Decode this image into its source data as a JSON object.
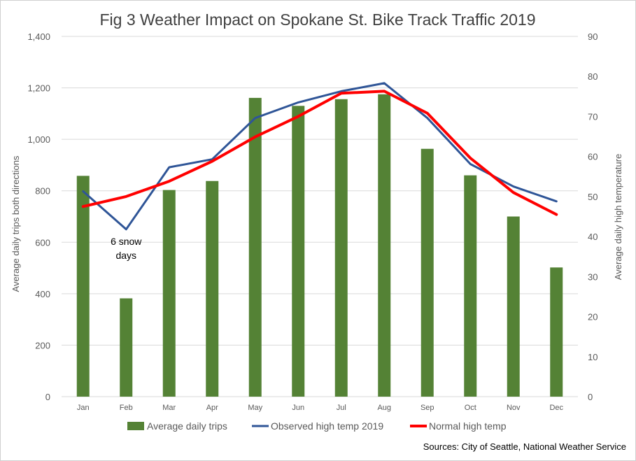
{
  "chart_data": {
    "type": "bar",
    "title": "Fig 3 Weather Impact on Spokane St. Bike Track Traffic 2019",
    "ylabel_left": "Average daily trips both directions",
    "ylabel_right": "Average daily high temperature",
    "ylim_left": [
      0,
      1400
    ],
    "ylim_right": [
      0,
      90
    ],
    "yticks_left": [
      "0",
      "200",
      "400",
      "600",
      "800",
      "1,000",
      "1,200",
      "1,400"
    ],
    "yticks_right": [
      "0",
      "10",
      "20",
      "30",
      "40",
      "50",
      "60",
      "70",
      "80",
      "90"
    ],
    "yticks_left_values": [
      0,
      200,
      400,
      600,
      800,
      1000,
      1200,
      1400
    ],
    "yticks_right_values": [
      0,
      10,
      20,
      30,
      40,
      50,
      60,
      70,
      80,
      90
    ],
    "categories": [
      "Jan",
      "Feb",
      "Mar",
      "Apr",
      "May",
      "Jun",
      "Jul",
      "Aug",
      "Sep",
      "Oct",
      "Nov",
      "Dec"
    ],
    "grid": true,
    "legend_position": "bottom",
    "series": [
      {
        "name": "Average daily trips",
        "kind": "bar",
        "axis": "left",
        "color": "#548235",
        "values": [
          858,
          382,
          803,
          838,
          1161,
          1130,
          1156,
          1175,
          963,
          860,
          700,
          502
        ]
      },
      {
        "name": "Observed high temp 2019",
        "kind": "line",
        "axis": "right",
        "color": "#2F5597",
        "values": [
          51.3,
          41.8,
          57.3,
          59.3,
          69.6,
          73.5,
          76.3,
          78.3,
          69.6,
          58.1,
          52.5,
          48.8
        ]
      },
      {
        "name": "Normal high temp",
        "kind": "line",
        "axis": "right",
        "color": "#FF0000",
        "values": [
          47.5,
          50.0,
          53.8,
          58.8,
          64.9,
          70.0,
          75.8,
          76.3,
          70.8,
          59.6,
          51.0,
          45.5
        ]
      }
    ],
    "annotations": [
      {
        "text_line1": "6 snow",
        "text_line2": "days",
        "category": "Feb",
        "value": 590
      }
    ],
    "source": "Sources: City of Seattle, National Weather Service"
  }
}
